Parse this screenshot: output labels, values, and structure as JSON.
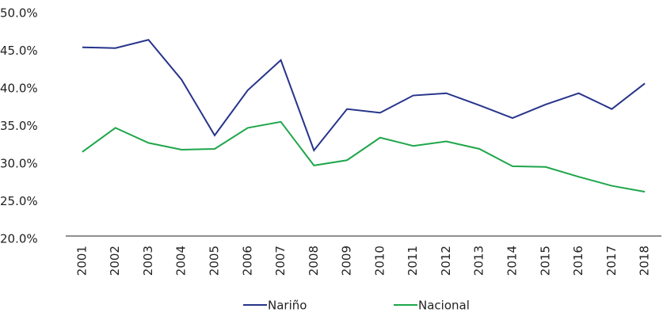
{
  "chart_data": {
    "type": "line",
    "categories": [
      "2001",
      "2002",
      "2003",
      "2004",
      "2005",
      "2006",
      "2007",
      "2008",
      "2009",
      "2010",
      "2011",
      "2012",
      "2013",
      "2014",
      "2015",
      "2016",
      "2017",
      "2018"
    ],
    "series": [
      {
        "name": "Nariño",
        "color": "#27348b",
        "values": [
          45.5,
          45.4,
          46.5,
          41.2,
          33.8,
          39.8,
          43.8,
          31.8,
          37.3,
          36.8,
          39.1,
          39.4,
          37.8,
          36.1,
          37.9,
          39.4,
          37.3,
          40.7
        ]
      },
      {
        "name": "Nacional",
        "color": "#1ea64a",
        "values": [
          31.6,
          34.8,
          32.8,
          31.9,
          32.0,
          34.8,
          35.6,
          29.8,
          30.5,
          33.5,
          32.4,
          33.0,
          32.0,
          29.7,
          29.6,
          28.3,
          27.1,
          26.3
        ]
      }
    ],
    "ylim": [
      20,
      50
    ],
    "yticks": [
      {
        "value": 20,
        "label": "20.0%"
      },
      {
        "value": 25,
        "label": "25.0%"
      },
      {
        "value": 30,
        "label": "30.0%"
      },
      {
        "value": 35,
        "label": "35.0%"
      },
      {
        "value": 40,
        "label": "40.0%"
      },
      {
        "value": 45,
        "label": "45.0%"
      },
      {
        "value": 50,
        "label": "50.0%"
      }
    ],
    "legend": "bottom"
  }
}
